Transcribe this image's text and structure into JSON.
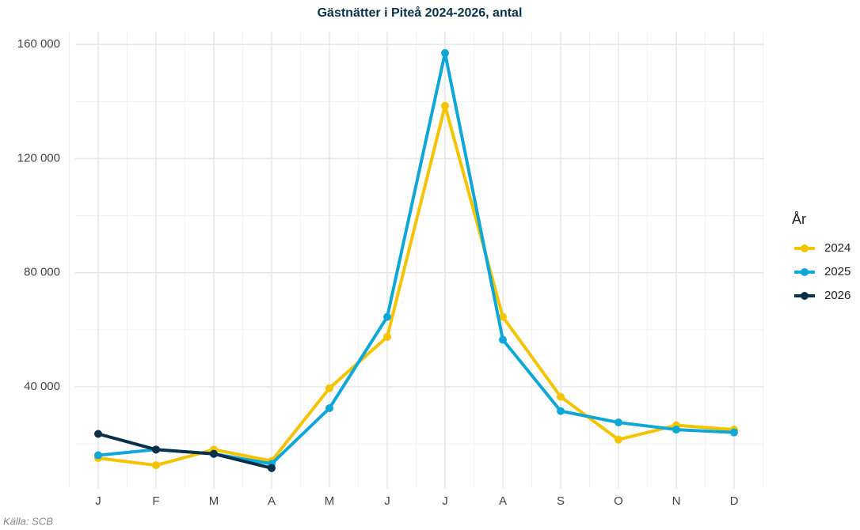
{
  "chart_data": {
    "type": "line",
    "title": "Gästnätter i Piteå 2024-2026, antal",
    "source": "Källa: SCB",
    "legend_title": "År",
    "legend_position": "right",
    "grid": true,
    "categories": [
      "J",
      "F",
      "M",
      "A",
      "M",
      "J",
      "J",
      "A",
      "S",
      "O",
      "N",
      "D"
    ],
    "series": [
      {
        "name": "2024",
        "color": "#f5c400",
        "values": [
          15000,
          12500,
          18000,
          14000,
          39500,
          57500,
          138500,
          64500,
          36500,
          21500,
          26500,
          25000
        ]
      },
      {
        "name": "2025",
        "color": "#0fa7d8",
        "values": [
          16000,
          18000,
          16500,
          13000,
          32500,
          64500,
          157000,
          56500,
          31500,
          27500,
          25000,
          24000
        ]
      },
      {
        "name": "2026",
        "color": "#0b3049",
        "values": [
          23500,
          18000,
          16500,
          11500,
          null,
          null,
          null,
          null,
          null,
          null,
          null,
          null
        ]
      }
    ],
    "ylim": [
      4500,
      164500
    ],
    "yticks": [
      {
        "value": 40000,
        "label": "40 000"
      },
      {
        "value": 80000,
        "label": "80 000"
      },
      {
        "value": 120000,
        "label": "120 000"
      },
      {
        "value": 160000,
        "label": "160 000"
      }
    ]
  }
}
